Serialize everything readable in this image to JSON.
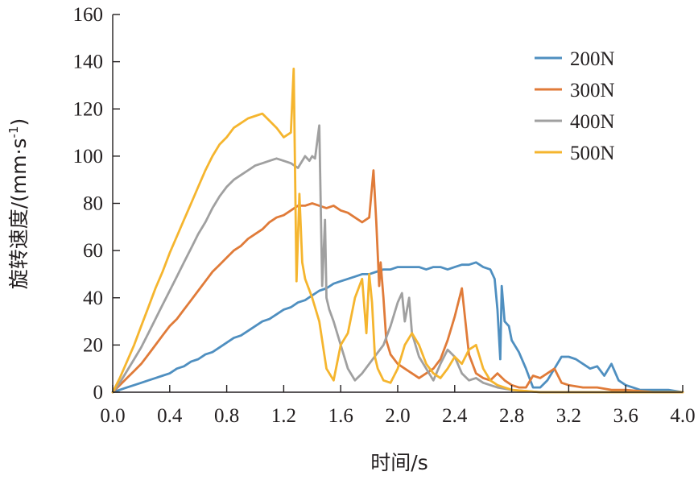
{
  "chart_data": {
    "type": "line",
    "title": "",
    "xlabel": "时间/s",
    "ylabel_main": "旋转速度/(mm·s",
    "ylabel_sup": "-1",
    "ylabel_close": ")",
    "xlim": [
      0,
      4.0
    ],
    "ylim": [
      0,
      160
    ],
    "xticks": [
      "0.0",
      "0.4",
      "0.8",
      "1.2",
      "1.6",
      "2.0",
      "2.4",
      "2.8",
      "3.2",
      "3.6",
      "4.0"
    ],
    "yticks": [
      "0",
      "20",
      "40",
      "60",
      "80",
      "100",
      "120",
      "140",
      "160"
    ],
    "grid": false,
    "legend_position": "top-right",
    "series": [
      {
        "name": "200N",
        "color": "#4f8fc0",
        "x": [
          0.0,
          0.05,
          0.1,
          0.15,
          0.2,
          0.25,
          0.3,
          0.35,
          0.4,
          0.45,
          0.5,
          0.55,
          0.6,
          0.65,
          0.7,
          0.75,
          0.8,
          0.85,
          0.9,
          0.95,
          1.0,
          1.05,
          1.1,
          1.15,
          1.2,
          1.25,
          1.3,
          1.35,
          1.4,
          1.45,
          1.5,
          1.55,
          1.6,
          1.65,
          1.7,
          1.75,
          1.8,
          1.85,
          1.9,
          1.95,
          2.0,
          2.05,
          2.1,
          2.15,
          2.2,
          2.25,
          2.3,
          2.35,
          2.4,
          2.45,
          2.5,
          2.55,
          2.6,
          2.65,
          2.68,
          2.7,
          2.72,
          2.73,
          2.75,
          2.78,
          2.8,
          2.85,
          2.9,
          2.95,
          3.0,
          3.05,
          3.1,
          3.15,
          3.2,
          3.25,
          3.3,
          3.35,
          3.4,
          3.45,
          3.5,
          3.55,
          3.6,
          3.65,
          3.7,
          3.75,
          3.8,
          3.9,
          4.0
        ],
        "y": [
          0,
          1,
          2,
          3,
          4,
          5,
          6,
          7,
          8,
          10,
          11,
          13,
          14,
          16,
          17,
          19,
          21,
          23,
          24,
          26,
          28,
          30,
          31,
          33,
          35,
          36,
          38,
          39,
          41,
          43,
          44,
          46,
          47,
          48,
          49,
          50,
          50,
          51,
          52,
          52,
          53,
          53,
          53,
          53,
          52,
          53,
          53,
          52,
          53,
          54,
          54,
          55,
          53,
          52,
          48,
          35,
          14,
          45,
          30,
          28,
          22,
          17,
          10,
          2,
          2,
          5,
          10,
          15,
          15,
          14,
          12,
          10,
          11,
          7,
          12,
          5,
          3,
          2,
          1,
          1,
          1,
          1,
          0
        ]
      },
      {
        "name": "300N",
        "color": "#e07b39",
        "x": [
          0.0,
          0.05,
          0.1,
          0.15,
          0.2,
          0.25,
          0.3,
          0.35,
          0.4,
          0.45,
          0.5,
          0.55,
          0.6,
          0.65,
          0.7,
          0.75,
          0.8,
          0.85,
          0.9,
          0.95,
          1.0,
          1.05,
          1.1,
          1.15,
          1.2,
          1.25,
          1.3,
          1.35,
          1.4,
          1.45,
          1.5,
          1.55,
          1.6,
          1.65,
          1.7,
          1.75,
          1.8,
          1.83,
          1.85,
          1.87,
          1.88,
          1.9,
          1.92,
          1.95,
          2.0,
          2.05,
          2.1,
          2.15,
          2.2,
          2.25,
          2.3,
          2.35,
          2.4,
          2.45,
          2.5,
          2.55,
          2.6,
          2.65,
          2.7,
          2.75,
          2.8,
          2.85,
          2.9,
          2.95,
          3.0,
          3.05,
          3.1,
          3.15,
          3.2,
          3.3,
          3.4,
          3.5,
          3.6,
          3.8,
          4.0
        ],
        "y": [
          0,
          3,
          6,
          9,
          12,
          16,
          20,
          24,
          28,
          31,
          35,
          39,
          43,
          47,
          51,
          54,
          57,
          60,
          62,
          65,
          67,
          69,
          72,
          74,
          75,
          77,
          79,
          79,
          80,
          79,
          78,
          79,
          77,
          76,
          74,
          72,
          74,
          94,
          72,
          45,
          55,
          40,
          22,
          16,
          12,
          10,
          8,
          6,
          8,
          10,
          14,
          22,
          32,
          44,
          16,
          8,
          6,
          5,
          8,
          5,
          3,
          2,
          2,
          7,
          6,
          8,
          10,
          4,
          3,
          2,
          2,
          1,
          1,
          0,
          0
        ]
      },
      {
        "name": "400N",
        "color": "#a0a0a0",
        "x": [
          0.0,
          0.05,
          0.1,
          0.15,
          0.2,
          0.25,
          0.3,
          0.35,
          0.4,
          0.45,
          0.5,
          0.55,
          0.6,
          0.65,
          0.7,
          0.75,
          0.8,
          0.85,
          0.9,
          0.95,
          1.0,
          1.05,
          1.1,
          1.15,
          1.2,
          1.25,
          1.3,
          1.35,
          1.38,
          1.4,
          1.42,
          1.45,
          1.47,
          1.49,
          1.5,
          1.52,
          1.55,
          1.6,
          1.65,
          1.7,
          1.75,
          1.8,
          1.85,
          1.9,
          1.95,
          2.0,
          2.03,
          2.05,
          2.08,
          2.1,
          2.15,
          2.2,
          2.25,
          2.3,
          2.35,
          2.4,
          2.45,
          2.5,
          2.55,
          2.6,
          2.65,
          2.7,
          2.8,
          3.0,
          3.4,
          4.0
        ],
        "y": [
          0,
          4,
          9,
          14,
          19,
          25,
          31,
          37,
          43,
          49,
          55,
          61,
          67,
          72,
          78,
          83,
          87,
          90,
          92,
          94,
          96,
          97,
          98,
          99,
          98,
          97,
          95,
          100,
          98,
          100,
          99,
          113,
          45,
          73,
          40,
          35,
          30,
          20,
          10,
          5,
          8,
          12,
          16,
          20,
          28,
          38,
          42,
          30,
          40,
          25,
          15,
          10,
          5,
          12,
          18,
          15,
          8,
          5,
          6,
          4,
          3,
          2,
          1,
          0,
          0,
          0
        ]
      },
      {
        "name": "500N",
        "color": "#f5b52e",
        "x": [
          0.0,
          0.05,
          0.1,
          0.15,
          0.2,
          0.25,
          0.3,
          0.35,
          0.4,
          0.45,
          0.5,
          0.55,
          0.6,
          0.65,
          0.7,
          0.75,
          0.8,
          0.85,
          0.9,
          0.95,
          1.0,
          1.05,
          1.1,
          1.15,
          1.2,
          1.25,
          1.27,
          1.29,
          1.31,
          1.33,
          1.35,
          1.4,
          1.45,
          1.5,
          1.55,
          1.6,
          1.65,
          1.7,
          1.75,
          1.78,
          1.8,
          1.82,
          1.84,
          1.86,
          1.9,
          1.95,
          2.0,
          2.05,
          2.1,
          2.15,
          2.2,
          2.25,
          2.3,
          2.35,
          2.4,
          2.45,
          2.5,
          2.55,
          2.6,
          2.65,
          2.7,
          2.8,
          3.0,
          3.5,
          4.0
        ],
        "y": [
          0,
          6,
          13,
          20,
          28,
          36,
          44,
          51,
          59,
          66,
          73,
          80,
          87,
          94,
          100,
          105,
          108,
          112,
          114,
          116,
          117,
          118,
          115,
          112,
          108,
          110,
          137,
          47,
          84,
          55,
          48,
          40,
          30,
          10,
          5,
          20,
          25,
          40,
          48,
          25,
          50,
          38,
          15,
          10,
          5,
          4,
          10,
          20,
          25,
          20,
          12,
          8,
          6,
          10,
          15,
          12,
          18,
          20,
          10,
          5,
          3,
          1,
          0,
          0,
          0
        ]
      }
    ]
  }
}
